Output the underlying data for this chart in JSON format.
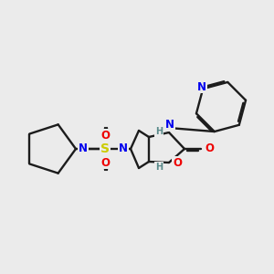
{
  "bg": "#ebebeb",
  "bc": "#1c1c1c",
  "lw": 1.7,
  "doff": 0.1,
  "colors": {
    "N": "#0000ee",
    "S": "#cccc00",
    "O": "#ee0000",
    "H": "#5a8a8a"
  },
  "afs": 8.5,
  "hfs": 7.0,
  "figsize": [
    3.0,
    3.0
  ],
  "dpi": 100,
  "xlim": [
    0,
    300
  ],
  "ylim": [
    0,
    300
  ]
}
